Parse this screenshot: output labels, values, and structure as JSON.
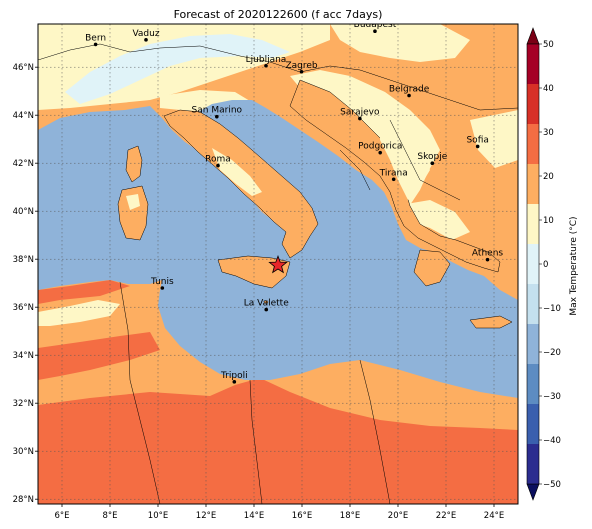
{
  "title": "Forecast of 2020122600 (f acc 7days)",
  "map": {
    "lon_range": [
      5,
      25
    ],
    "lat_range": [
      27.8,
      47.8
    ],
    "x_ticks": [
      6,
      8,
      10,
      12,
      14,
      16,
      18,
      20,
      22,
      24
    ],
    "x_tick_labels": [
      "6°E",
      "8°E",
      "10°E",
      "12°E",
      "14°E",
      "16°E",
      "18°E",
      "20°E",
      "22°E",
      "24°E"
    ],
    "y_ticks": [
      28,
      30,
      32,
      34,
      36,
      38,
      40,
      42,
      44,
      46
    ],
    "y_tick_labels": [
      "28°N",
      "30°N",
      "32°N",
      "34°N",
      "36°N",
      "38°N",
      "40°N",
      "42°N",
      "44°N",
      "46°N"
    ],
    "grid": true,
    "colors": {
      "sea": "#8fb3d9",
      "band_m10_0": "#e0f3f8",
      "band_0_10": "#fef7c6",
      "band_10_20": "#fdae61",
      "band_20_30": "#f46d43",
      "band_30_40": "#d73027"
    },
    "cities": [
      {
        "name": "Bern",
        "lon": 7.4,
        "lat": 46.95
      },
      {
        "name": "Vaduz",
        "lon": 9.5,
        "lat": 47.14
      },
      {
        "name": "Budapest",
        "lon": 19.04,
        "lat": 47.5
      },
      {
        "name": "Ljubljana",
        "lon": 14.5,
        "lat": 46.06
      },
      {
        "name": "Zagreb",
        "lon": 15.98,
        "lat": 45.81
      },
      {
        "name": "Belgrade",
        "lon": 20.46,
        "lat": 44.82
      },
      {
        "name": "San Marino",
        "lon": 12.45,
        "lat": 43.94
      },
      {
        "name": "Sarajevo",
        "lon": 18.41,
        "lat": 43.86
      },
      {
        "name": "Sofia",
        "lon": 23.32,
        "lat": 42.7
      },
      {
        "name": "Podgorica",
        "lon": 19.26,
        "lat": 42.44
      },
      {
        "name": "Skopje",
        "lon": 21.43,
        "lat": 42.0
      },
      {
        "name": "Roma",
        "lon": 12.5,
        "lat": 41.9
      },
      {
        "name": "Tirana",
        "lon": 19.82,
        "lat": 41.33
      },
      {
        "name": "Athens",
        "lon": 23.73,
        "lat": 37.98
      },
      {
        "name": "Tunis",
        "lon": 10.18,
        "lat": 36.8
      },
      {
        "name": "La Valette",
        "lon": 14.51,
        "lat": 35.9
      },
      {
        "name": "Tripoli",
        "lon": 13.18,
        "lat": 32.89
      }
    ],
    "marker": {
      "lon": 15.0,
      "lat": 37.75,
      "color": "#e8262a",
      "icon": "star-icon"
    }
  },
  "colorbar": {
    "label": "Max Temperature (°C)",
    "ticks": [
      -50,
      -40,
      -30,
      -20,
      -10,
      0,
      10,
      20,
      30,
      40,
      50
    ],
    "tick_labels": [
      "−50",
      "−40",
      "−30",
      "−20",
      "−10",
      "0",
      "10",
      "20",
      "30",
      "40",
      "50"
    ],
    "colors": [
      "#2b2c8f",
      "#3a5fae",
      "#5d8cc2",
      "#8fb3d9",
      "#c4e0ee",
      "#e0f3f8",
      "#fef7c6",
      "#fdae61",
      "#f46d43",
      "#d73027",
      "#a50026"
    ],
    "under_color": "#0b0f5e",
    "over_color": "#7a0015"
  }
}
